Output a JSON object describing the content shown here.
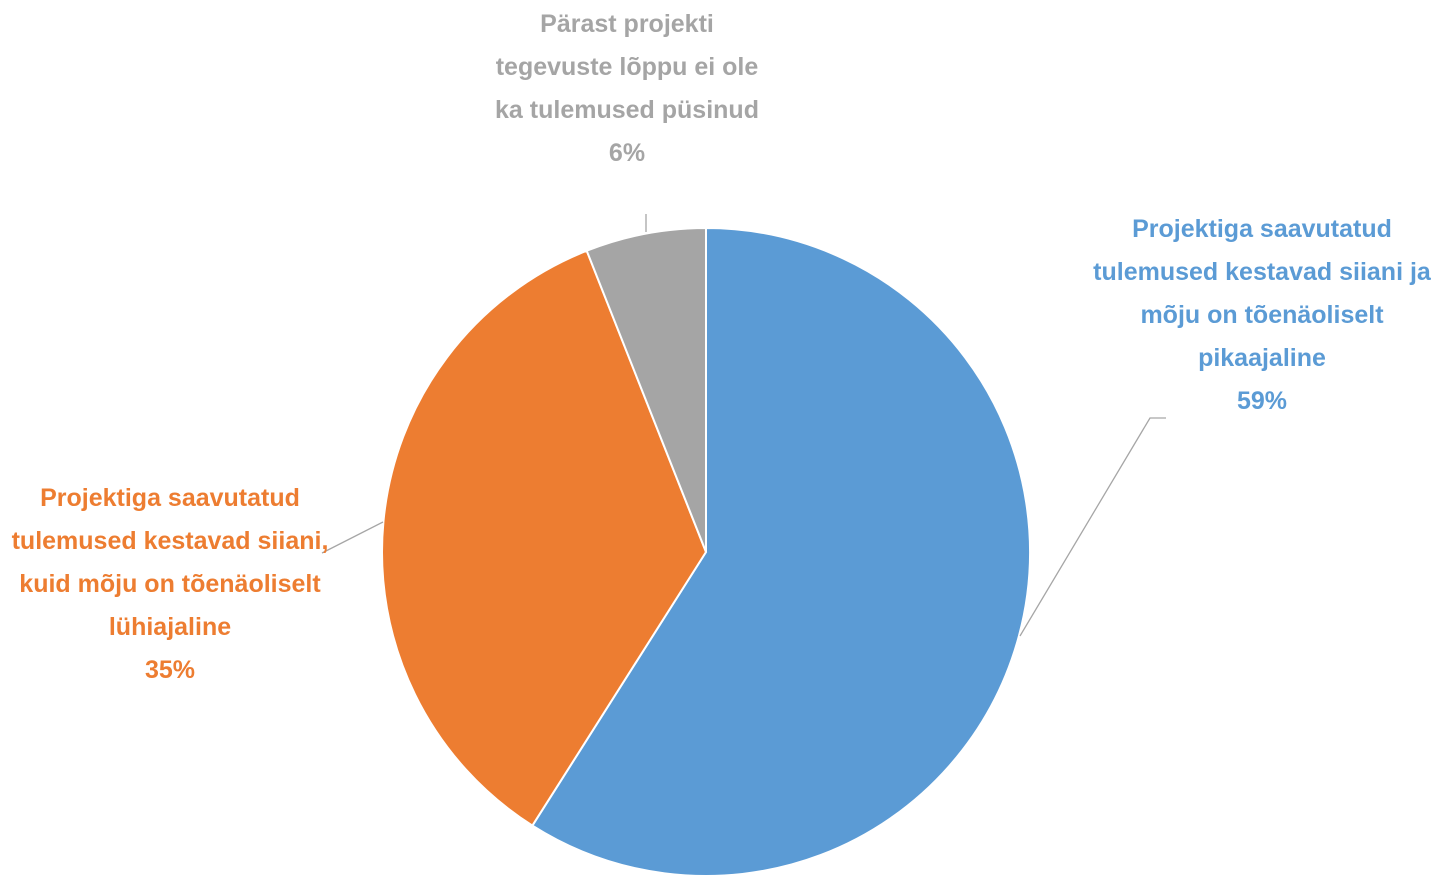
{
  "chart_data": {
    "type": "pie",
    "categories": [
      "Projektiga saavutatud tulemused kestavad siiani ja mõju on tõenäoliselt pikaajaline",
      "Projektiga saavutatud tulemused kestavad siiani, kuid mõju on tõenäoliselt lühiajaline",
      "Pärast projekti tegevuste lõppu ei ole ka tulemused püsinud"
    ],
    "values": [
      59,
      35,
      6
    ],
    "value_labels": [
      "59%",
      "35%",
      "6%"
    ],
    "colors": [
      "#5b9bd5",
      "#ed7d31",
      "#a5a5a5"
    ]
  }
}
